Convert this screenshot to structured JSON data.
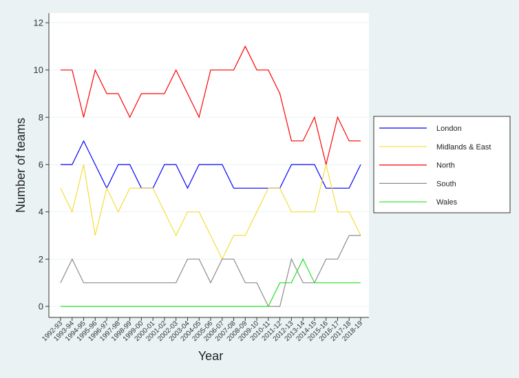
{
  "chart_data": {
    "type": "line",
    "xlabel": "Year",
    "ylabel": "Number of teams",
    "ylim": [
      0,
      12
    ],
    "yticks": [
      "0",
      "2",
      "4",
      "6",
      "8",
      "10",
      "12"
    ],
    "grid": "horizontal",
    "legend_position": "right",
    "categories": [
      "1992-93",
      "1993-94",
      "1994-95",
      "1995-96",
      "1996-97",
      "1997-98",
      "1998-99",
      "1999-00",
      "2000-01",
      "2001-02",
      "2002-03",
      "2003-04",
      "2004-05",
      "2005-06",
      "2006-07",
      "2007-08",
      "2008-09",
      "2009-10",
      "2010-11",
      "2011-12",
      "2012-13",
      "2013-14",
      "2014-15",
      "2015-16",
      "2016-17",
      "2017-18",
      "2018-19"
    ],
    "series": [
      {
        "name": "London",
        "color": "#0000ff",
        "values": [
          6,
          6,
          7,
          6,
          5,
          6,
          6,
          5,
          5,
          6,
          6,
          5,
          6,
          6,
          6,
          5,
          5,
          5,
          5,
          5,
          6,
          6,
          6,
          5,
          5,
          5,
          6
        ]
      },
      {
        "name": "Midlands & East",
        "color": "#f5dc3c",
        "values": [
          5,
          4,
          6,
          3,
          5,
          4,
          5,
          5,
          5,
          4,
          3,
          4,
          4,
          3,
          2,
          3,
          3,
          4,
          5,
          5,
          4,
          4,
          4,
          6,
          4,
          4,
          3
        ]
      },
      {
        "name": "North",
        "color": "#ff0000",
        "values": [
          10,
          10,
          8,
          10,
          9,
          9,
          8,
          9,
          9,
          9,
          10,
          9,
          8,
          10,
          10,
          10,
          11,
          10,
          10,
          9,
          7,
          7,
          8,
          6,
          8,
          7,
          7
        ]
      },
      {
        "name": "South",
        "color": "#8c8c8c",
        "values": [
          1,
          2,
          1,
          1,
          1,
          1,
          1,
          1,
          1,
          1,
          1,
          2,
          2,
          1,
          2,
          2,
          1,
          1,
          0,
          0,
          2,
          1,
          1,
          2,
          2,
          3,
          3
        ]
      },
      {
        "name": "Wales",
        "color": "#22e022",
        "values": [
          0,
          0,
          0,
          0,
          0,
          0,
          0,
          0,
          0,
          0,
          0,
          0,
          0,
          0,
          0,
          0,
          0,
          0,
          0,
          1,
          1,
          2,
          1,
          1,
          1,
          1,
          1
        ]
      }
    ]
  }
}
